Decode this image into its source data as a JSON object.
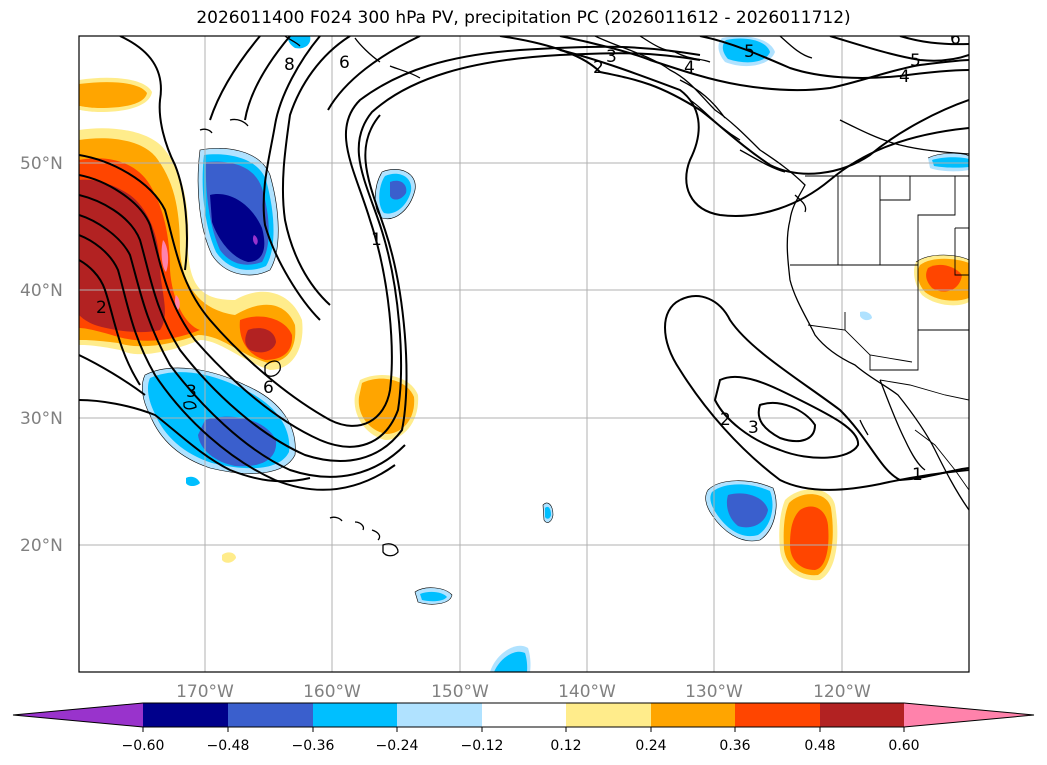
{
  "title": "2026011400 F024 300 hPa PV, precipitation PC (2026011612 - 2026011712)",
  "lat_labels": [
    "50°N",
    "40°N",
    "30°N",
    "20°N"
  ],
  "lon_labels": [
    "170°W",
    "160°W",
    "150°W",
    "140°W",
    "130°W",
    "120°W"
  ],
  "colorbar": {
    "ticks": [
      "−0.60",
      "−0.48",
      "−0.36",
      "−0.24",
      "−0.12",
      "0.12",
      "0.24",
      "0.36",
      "0.48",
      "0.60"
    ],
    "colors": [
      "#9933cc",
      "#00008b",
      "#3a5fcd",
      "#00bfff",
      "#b0e2ff",
      "#ffffff",
      "#ffec8b",
      "#ffa500",
      "#ff4500",
      "#b22222",
      "#ff82ab"
    ]
  },
  "contour_labels": [
    "8",
    "6",
    "1",
    "2",
    "3",
    "4",
    "5",
    "6",
    "2",
    "3",
    "6",
    "2",
    "3",
    "1",
    "4",
    "5"
  ]
}
